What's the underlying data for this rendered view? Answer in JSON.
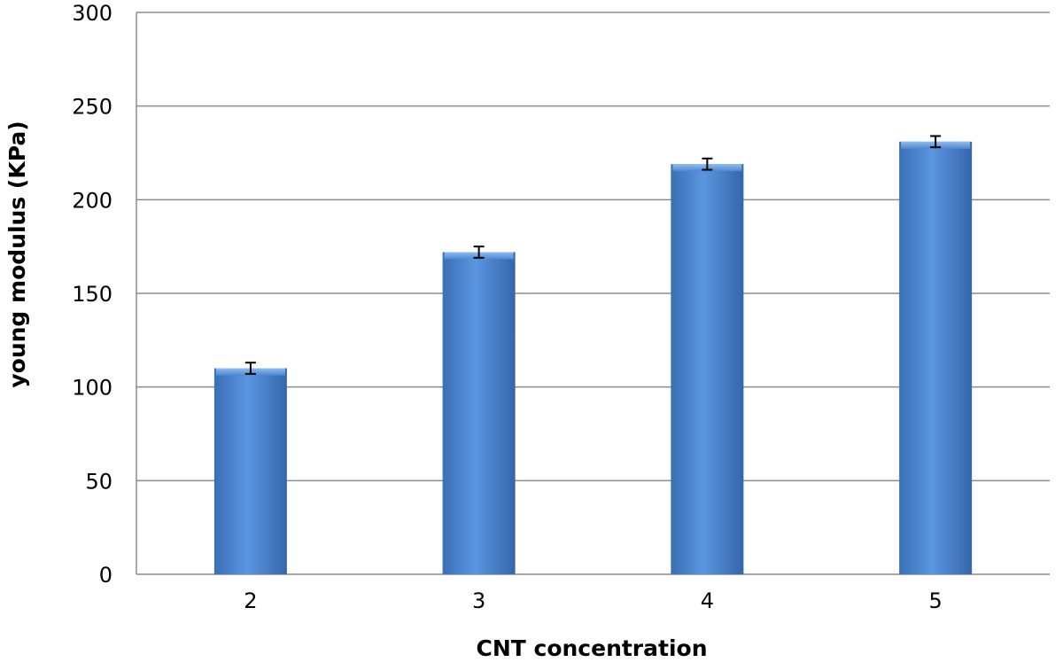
{
  "chart_data": {
    "type": "bar",
    "title": "",
    "xlabel": "CNT concentration",
    "ylabel": "young modulus  (KPa)",
    "categories": [
      "2",
      "3",
      "4",
      "5"
    ],
    "series": [
      {
        "values": [
          110,
          172,
          219,
          231
        ],
        "errors": [
          3,
          3,
          3,
          3
        ],
        "color": "#4a86d4"
      }
    ],
    "ylim": [
      0,
      300
    ],
    "yticks": [
      0,
      50,
      100,
      150,
      200,
      250,
      300
    ],
    "grid": true,
    "legend": "none"
  }
}
